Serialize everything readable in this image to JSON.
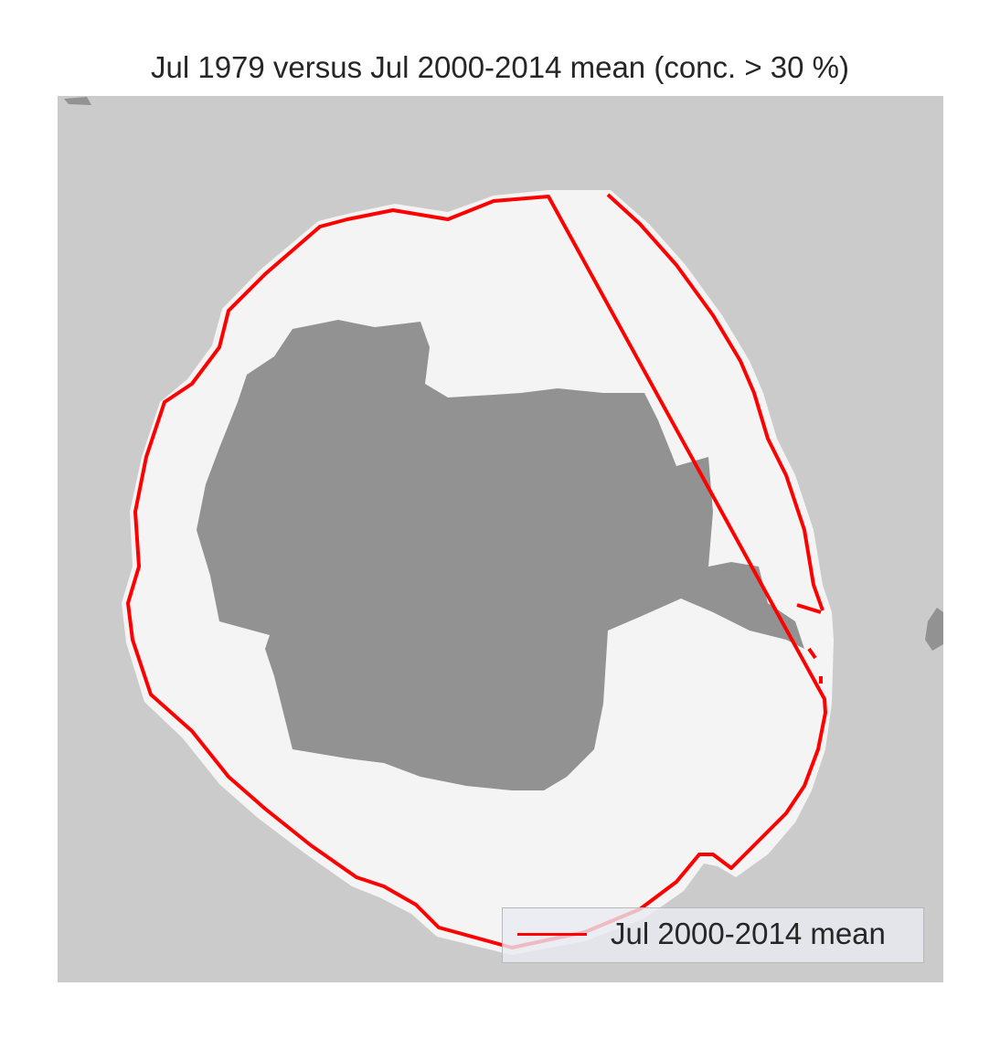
{
  "title": "Jul 1979 versus Jul 2000-2014 mean (conc. > 30 %)",
  "legend": {
    "entries": [
      {
        "label": "Jul 2000-2014 mean",
        "color": "#ff0000"
      }
    ]
  },
  "colors": {
    "ocean": "#cbcbcb",
    "sea_ice_1979": "#f4f4f4",
    "land": "#929292",
    "mean_edge": "#ff0000"
  }
}
